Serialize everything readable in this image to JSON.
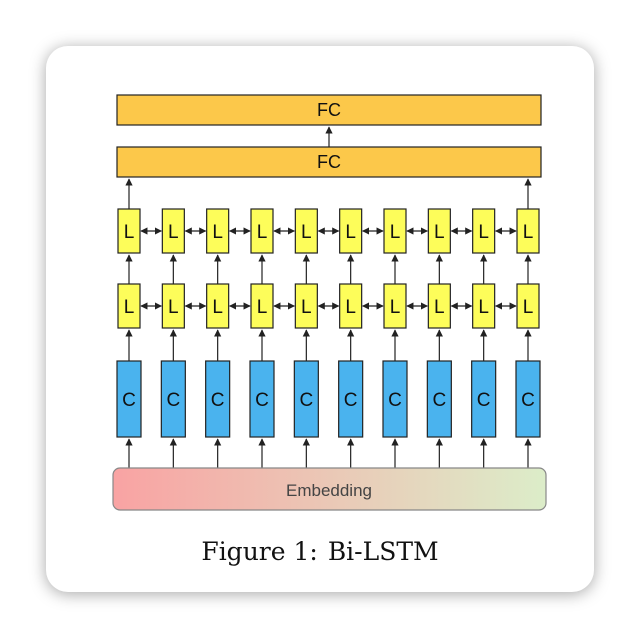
{
  "diagram": {
    "fc_top_label": "FC",
    "fc_mid_label": "FC",
    "lstm_label": "L",
    "conv_label": "C",
    "embedding_label": "Embedding",
    "columns": 10,
    "colors": {
      "fc_fill": "#fcc84a",
      "lstm_fill": "#fdfd5a",
      "conv_fill": "#4ab3ee",
      "embed_start": "#f9a3a3",
      "embed_end": "#dcedc9",
      "stroke": "#222222"
    }
  },
  "caption": {
    "label": "Figure 1:",
    "text": "Bi-LSTM"
  }
}
